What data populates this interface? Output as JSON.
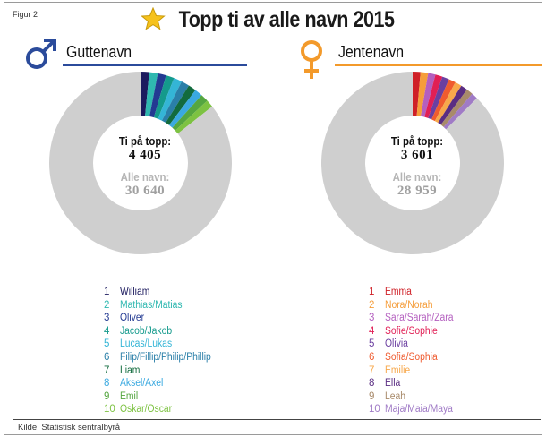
{
  "figure_label": "Figur 2",
  "title": "Topp ti av alle navn 2015",
  "source": "Kilde: Statistisk sentralbyrå",
  "icons": {
    "title": "star-icon",
    "boys": "male-symbol-icon",
    "girls": "female-symbol-icon"
  },
  "colors": {
    "boys_accent": "#2b4b9b",
    "girls_accent": "#f39a2b",
    "remainder": "#cfcfcf",
    "boys_palette": [
      "#1c1a5e",
      "#2fb8b0",
      "#233a92",
      "#149a8c",
      "#34b5d6",
      "#2a7fa8",
      "#126b3e",
      "#3aa9e0",
      "#55a640",
      "#7dc242"
    ],
    "girls_palette": [
      "#cf2027",
      "#f59d3a",
      "#b45fbf",
      "#e11f55",
      "#6b3fa0",
      "#ef5b2f",
      "#f7a84b",
      "#5a2d82",
      "#a88a6a",
      "#a07bc6"
    ]
  },
  "chart_data": [
    {
      "type": "pie",
      "title": "Guttenavn",
      "center": {
        "top_label": "Ti på topp:",
        "top_value": "4 405",
        "total_label": "Alle navn:",
        "total_value": "30 640"
      },
      "total": 30640,
      "top_total": 4405,
      "legend": [
        {
          "rank": "1",
          "name": "William"
        },
        {
          "rank": "2",
          "name": "Mathias/Matias"
        },
        {
          "rank": "3",
          "name": "Oliver"
        },
        {
          "rank": "4",
          "name": "Jacob/Jakob"
        },
        {
          "rank": "5",
          "name": "Lucas/Lukas"
        },
        {
          "rank": "6",
          "name": "Filip/Fillip/Philip/Phillip"
        },
        {
          "rank": "7",
          "name": "Liam"
        },
        {
          "rank": "8",
          "name": "Aksel/Axel"
        },
        {
          "rank": "9",
          "name": "Emil"
        },
        {
          "rank": "10",
          "name": "Oskar/Oscar"
        }
      ],
      "values": [
        470,
        462,
        455,
        450,
        445,
        440,
        430,
        425,
        420,
        408
      ]
    },
    {
      "type": "pie",
      "title": "Jentenavn",
      "center": {
        "top_label": "Ti på topp:",
        "top_value": "3 601",
        "total_label": "Alle navn:",
        "total_value": "28 959"
      },
      "total": 28959,
      "top_total": 3601,
      "legend": [
        {
          "rank": "1",
          "name": "Emma"
        },
        {
          "rank": "2",
          "name": "Nora/Norah"
        },
        {
          "rank": "3",
          "name": "Sara/Sarah/Zara"
        },
        {
          "rank": "4",
          "name": "Sofie/Sophie"
        },
        {
          "rank": "5",
          "name": "Olivia"
        },
        {
          "rank": "6",
          "name": "Sofia/Sophia"
        },
        {
          "rank": "7",
          "name": "Emilie"
        },
        {
          "rank": "8",
          "name": "Ella"
        },
        {
          "rank": "9",
          "name": "Leah"
        },
        {
          "rank": "10",
          "name": "Maja/Maia/Maya"
        }
      ],
      "values": [
        400,
        390,
        375,
        365,
        360,
        355,
        350,
        345,
        335,
        326
      ]
    }
  ]
}
